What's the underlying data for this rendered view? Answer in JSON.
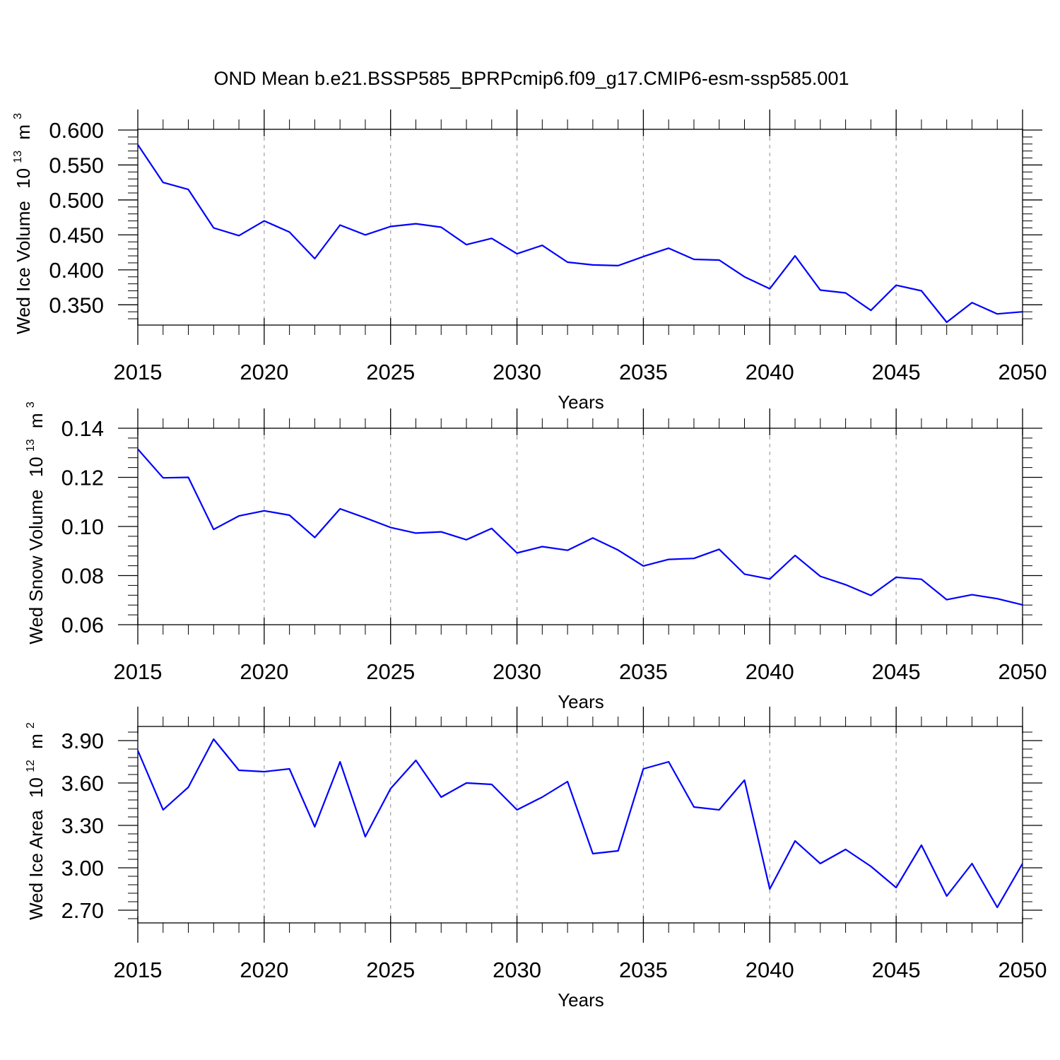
{
  "title": "OND Mean b.e21.BSSP585_BPRPcmip6.f09_g17.CMIP6-esm-ssp585.001",
  "colors": {
    "line": "#0000ff",
    "axis": "#000000",
    "grid": "#a0a0a0"
  },
  "chart_data": [
    {
      "type": "line",
      "title": "OND Mean b.e21.BSSP585_BPRPcmip6.f09_g17.CMIP6-esm-ssp585.001",
      "ylabel": "Wed Ice Volume",
      "ylabel_unit": {
        "base": "10",
        "exp": "13",
        "unit": "m",
        "unit_exp": "3"
      },
      "xlabel": "Years",
      "xlim": [
        2015,
        2050
      ],
      "ylim": [
        0.321,
        0.601
      ],
      "x_ticks": [
        2015,
        2020,
        2025,
        2030,
        2035,
        2040,
        2045,
        2050
      ],
      "x_tick_labels": [
        "2015",
        "2020",
        "2025",
        "2030",
        "2035",
        "2040",
        "2045",
        "2050"
      ],
      "y_ticks": [
        0.35,
        0.4,
        0.45,
        0.5,
        0.55,
        0.6
      ],
      "y_tick_labels": [
        "0.350",
        "0.400",
        "0.450",
        "0.500",
        "0.550",
        "0.600"
      ],
      "y_minor_step": 0.01,
      "x_minor_step": 1,
      "vgrid_years": [
        2020,
        2025,
        2030,
        2035,
        2040,
        2045
      ],
      "x": [
        2015,
        2016,
        2017,
        2018,
        2019,
        2020,
        2021,
        2022,
        2023,
        2024,
        2025,
        2026,
        2027,
        2028,
        2029,
        2030,
        2031,
        2032,
        2033,
        2034,
        2035,
        2036,
        2037,
        2038,
        2039,
        2040,
        2041,
        2042,
        2043,
        2044,
        2045,
        2046,
        2047,
        2048,
        2049,
        2050
      ],
      "series": [
        {
          "name": "Wed Ice Volume",
          "values": [
            0.579,
            0.525,
            0.515,
            0.46,
            0.449,
            0.47,
            0.454,
            0.416,
            0.464,
            0.45,
            0.462,
            0.466,
            0.461,
            0.436,
            0.445,
            0.423,
            0.435,
            0.411,
            0.407,
            0.406,
            0.419,
            0.431,
            0.415,
            0.414,
            0.39,
            0.373,
            0.42,
            0.371,
            0.367,
            0.342,
            0.378,
            0.37,
            0.325,
            0.353,
            0.337,
            0.34
          ]
        }
      ]
    },
    {
      "type": "line",
      "ylabel": "Wed Snow Volume",
      "ylabel_unit": {
        "base": "10",
        "exp": "13",
        "unit": "m",
        "unit_exp": "3"
      },
      "xlabel": "Years",
      "xlim": [
        2015,
        2050
      ],
      "ylim": [
        0.06,
        0.14
      ],
      "x_ticks": [
        2015,
        2020,
        2025,
        2030,
        2035,
        2040,
        2045,
        2050
      ],
      "x_tick_labels": [
        "2015",
        "2020",
        "2025",
        "2030",
        "2035",
        "2040",
        "2045",
        "2050"
      ],
      "y_ticks": [
        0.06,
        0.08,
        0.1,
        0.12,
        0.14
      ],
      "y_tick_labels": [
        "0.06",
        "0.08",
        "0.10",
        "0.12",
        "0.14"
      ],
      "y_minor_step": 0.004,
      "x_minor_step": 1,
      "vgrid_years": [
        2020,
        2025,
        2030,
        2035,
        2040,
        2045
      ],
      "x": [
        2015,
        2016,
        2017,
        2018,
        2019,
        2020,
        2021,
        2022,
        2023,
        2024,
        2025,
        2026,
        2027,
        2028,
        2029,
        2030,
        2031,
        2032,
        2033,
        2034,
        2035,
        2036,
        2037,
        2038,
        2039,
        2040,
        2041,
        2042,
        2043,
        2044,
        2045,
        2046,
        2047,
        2048,
        2049,
        2050
      ],
      "series": [
        {
          "name": "Wed Snow Volume",
          "values": [
            0.1315,
            0.1198,
            0.12,
            0.0988,
            0.1043,
            0.1064,
            0.1046,
            0.0955,
            0.1072,
            0.1035,
            0.0996,
            0.0973,
            0.0978,
            0.0946,
            0.0992,
            0.0892,
            0.0918,
            0.0903,
            0.0953,
            0.0904,
            0.0839,
            0.0866,
            0.087,
            0.0907,
            0.0806,
            0.0786,
            0.0882,
            0.0797,
            0.0763,
            0.0719,
            0.0793,
            0.0785,
            0.0702,
            0.0722,
            0.0706,
            0.0681
          ]
        }
      ]
    },
    {
      "type": "line",
      "ylabel": "Wed Ice Area",
      "ylabel_unit": {
        "base": "10",
        "exp": "12",
        "unit": "m",
        "unit_exp": "2"
      },
      "xlabel": "Years",
      "xlim": [
        2015,
        2050
      ],
      "ylim": [
        2.61,
        4.0
      ],
      "x_ticks": [
        2015,
        2020,
        2025,
        2030,
        2035,
        2040,
        2045,
        2050
      ],
      "x_tick_labels": [
        "2015",
        "2020",
        "2025",
        "2030",
        "2035",
        "2040",
        "2045",
        "2050"
      ],
      "y_ticks": [
        2.7,
        3.0,
        3.3,
        3.6,
        3.9
      ],
      "y_tick_labels": [
        "2.70",
        "3.00",
        "3.30",
        "3.60",
        "3.90"
      ],
      "y_minor_step": 0.06,
      "x_minor_step": 1,
      "vgrid_years": [
        2020,
        2025,
        2030,
        2035,
        2040,
        2045
      ],
      "x": [
        2015,
        2016,
        2017,
        2018,
        2019,
        2020,
        2021,
        2022,
        2023,
        2024,
        2025,
        2026,
        2027,
        2028,
        2029,
        2030,
        2031,
        2032,
        2033,
        2034,
        2035,
        2036,
        2037,
        2038,
        2039,
        2040,
        2041,
        2042,
        2043,
        2044,
        2045,
        2046,
        2047,
        2048,
        2049,
        2050
      ],
      "series": [
        {
          "name": "Wed Ice Area",
          "values": [
            3.83,
            3.41,
            3.57,
            3.91,
            3.69,
            3.68,
            3.7,
            3.29,
            3.75,
            3.22,
            3.56,
            3.76,
            3.5,
            3.6,
            3.59,
            3.41,
            3.5,
            3.61,
            3.1,
            3.12,
            3.7,
            3.75,
            3.43,
            3.41,
            3.62,
            2.85,
            3.19,
            3.03,
            3.13,
            3.01,
            2.86,
            3.16,
            2.8,
            3.03,
            2.72,
            3.03
          ]
        }
      ]
    }
  ]
}
